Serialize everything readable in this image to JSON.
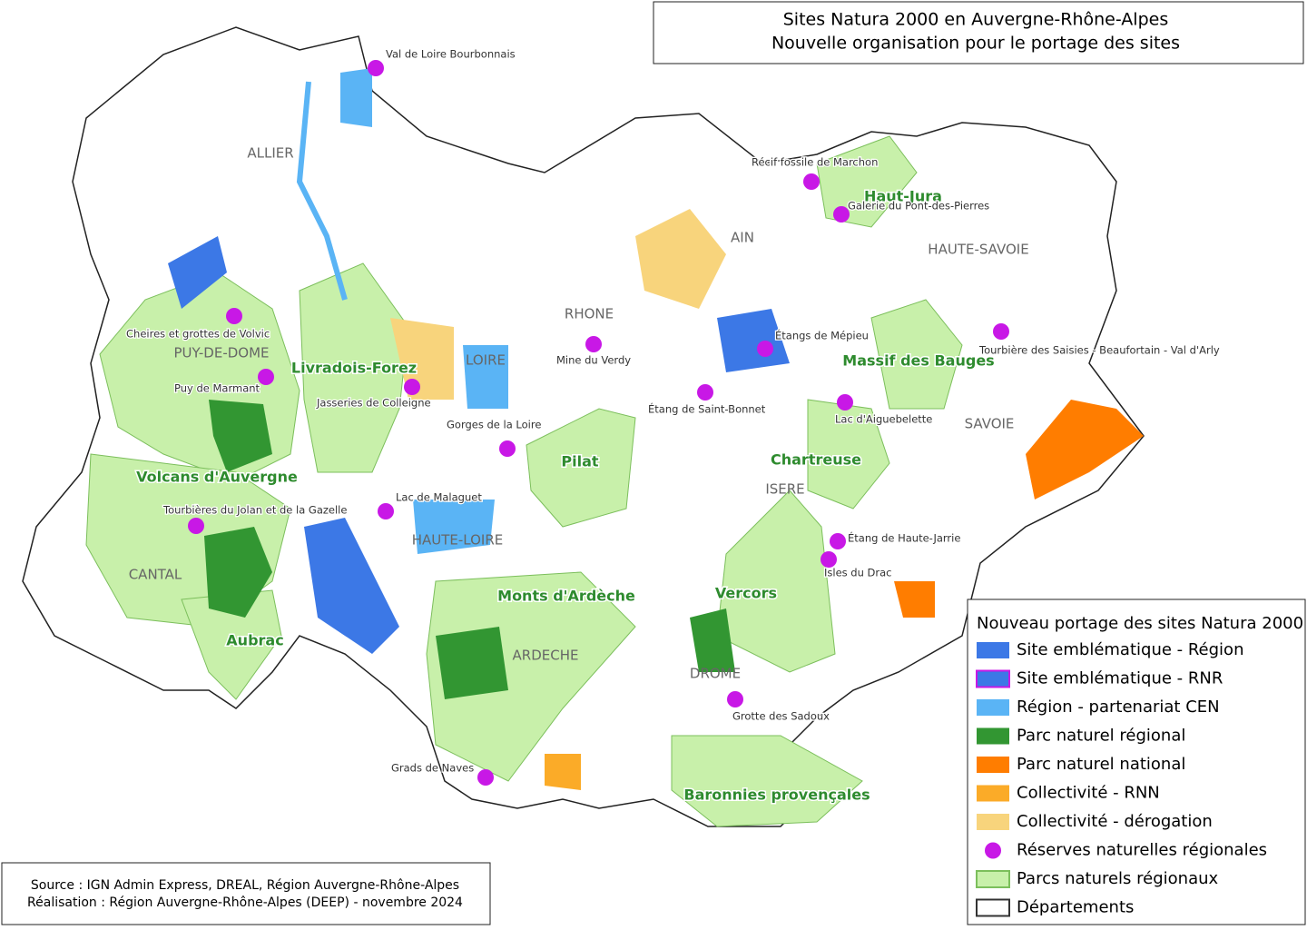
{
  "title": [
    "Sites Natura 2000 en Auvergne-Rhône-Alpes",
    "Nouvelle organisation pour le portage des sites"
  ],
  "departments": [
    "ALLIER",
    "PUY-DE-DOME",
    "CANTAL",
    "LOIRE",
    "HAUTE-LOIRE",
    "RHONE",
    "AIN",
    "ARDECHE",
    "DROME",
    "ISERE",
    "SAVOIE",
    "HAUTE-SAVOIE"
  ],
  "parks": [
    "Haut-Jura",
    "Livradois-Forez",
    "Volcans d'Auvergne",
    "Aubrac",
    "Pilat",
    "Monts d'Ardèche",
    "Vercors",
    "Chartreuse",
    "Massif des Bauges",
    "Baronnies provençales"
  ],
  "reserves": [
    "Val de Loire Bourbonnais",
    "Récif fossile de Marchon",
    "Galerie du Pont-des-Pierres",
    "Cheires et grottes de Volvic",
    "Puy de Marmant",
    "Jasseries de Colleigne",
    "Mine du Verdy",
    "Étangs de Mépieu",
    "Tourbière des Saisies - Beaufortain - Val d'Arly",
    "Lac d'Aiguebelette",
    "Étang de Saint-Bonnet",
    "Gorges de la Loire",
    "Lac de Malaguet",
    "Tourbières du Jolan et de la Gazelle",
    "Étang de Haute-Jarrie",
    "Isles du Drac",
    "Grotte des Sadoux",
    "Grads de Naves"
  ],
  "legend": {
    "title": "Nouveau portage des sites Natura 2000",
    "items": [
      {
        "label": "Site emblématique - Région",
        "color": "#3c78e6",
        "shape": "square"
      },
      {
        "label": "Site emblématique - RNR",
        "color": "#3c78e6",
        "border": "#c818e6",
        "shape": "square"
      },
      {
        "label": "Région - partenariat CEN",
        "color": "#5ab4f5",
        "shape": "square"
      },
      {
        "label": "Parc naturel régional",
        "color": "#329632",
        "shape": "square"
      },
      {
        "label": "Parc naturel national",
        "color": "#ff7d00",
        "shape": "square"
      },
      {
        "label": "Collectivité - RNN",
        "color": "#fbab28",
        "shape": "square"
      },
      {
        "label": "Collectivité - dérogation",
        "color": "#f8d47c",
        "shape": "square"
      },
      {
        "label": "Réserves naturelles régionales",
        "color": "#c818e6",
        "shape": "circle"
      },
      {
        "label": "Parcs naturels régionaux",
        "color": "#c8f0aa",
        "border": "#7cbf5c",
        "shape": "square"
      },
      {
        "label": "Départements",
        "color": "#ffffff",
        "border": "#333333",
        "shape": "square"
      }
    ]
  },
  "source": [
    "Source : IGN Admin Express, DREAL, Région Auvergne-Rhône-Alpes",
    "Réalisation : Région Auvergne-Rhône-Alpes (DEEP) - novembre 2024"
  ]
}
